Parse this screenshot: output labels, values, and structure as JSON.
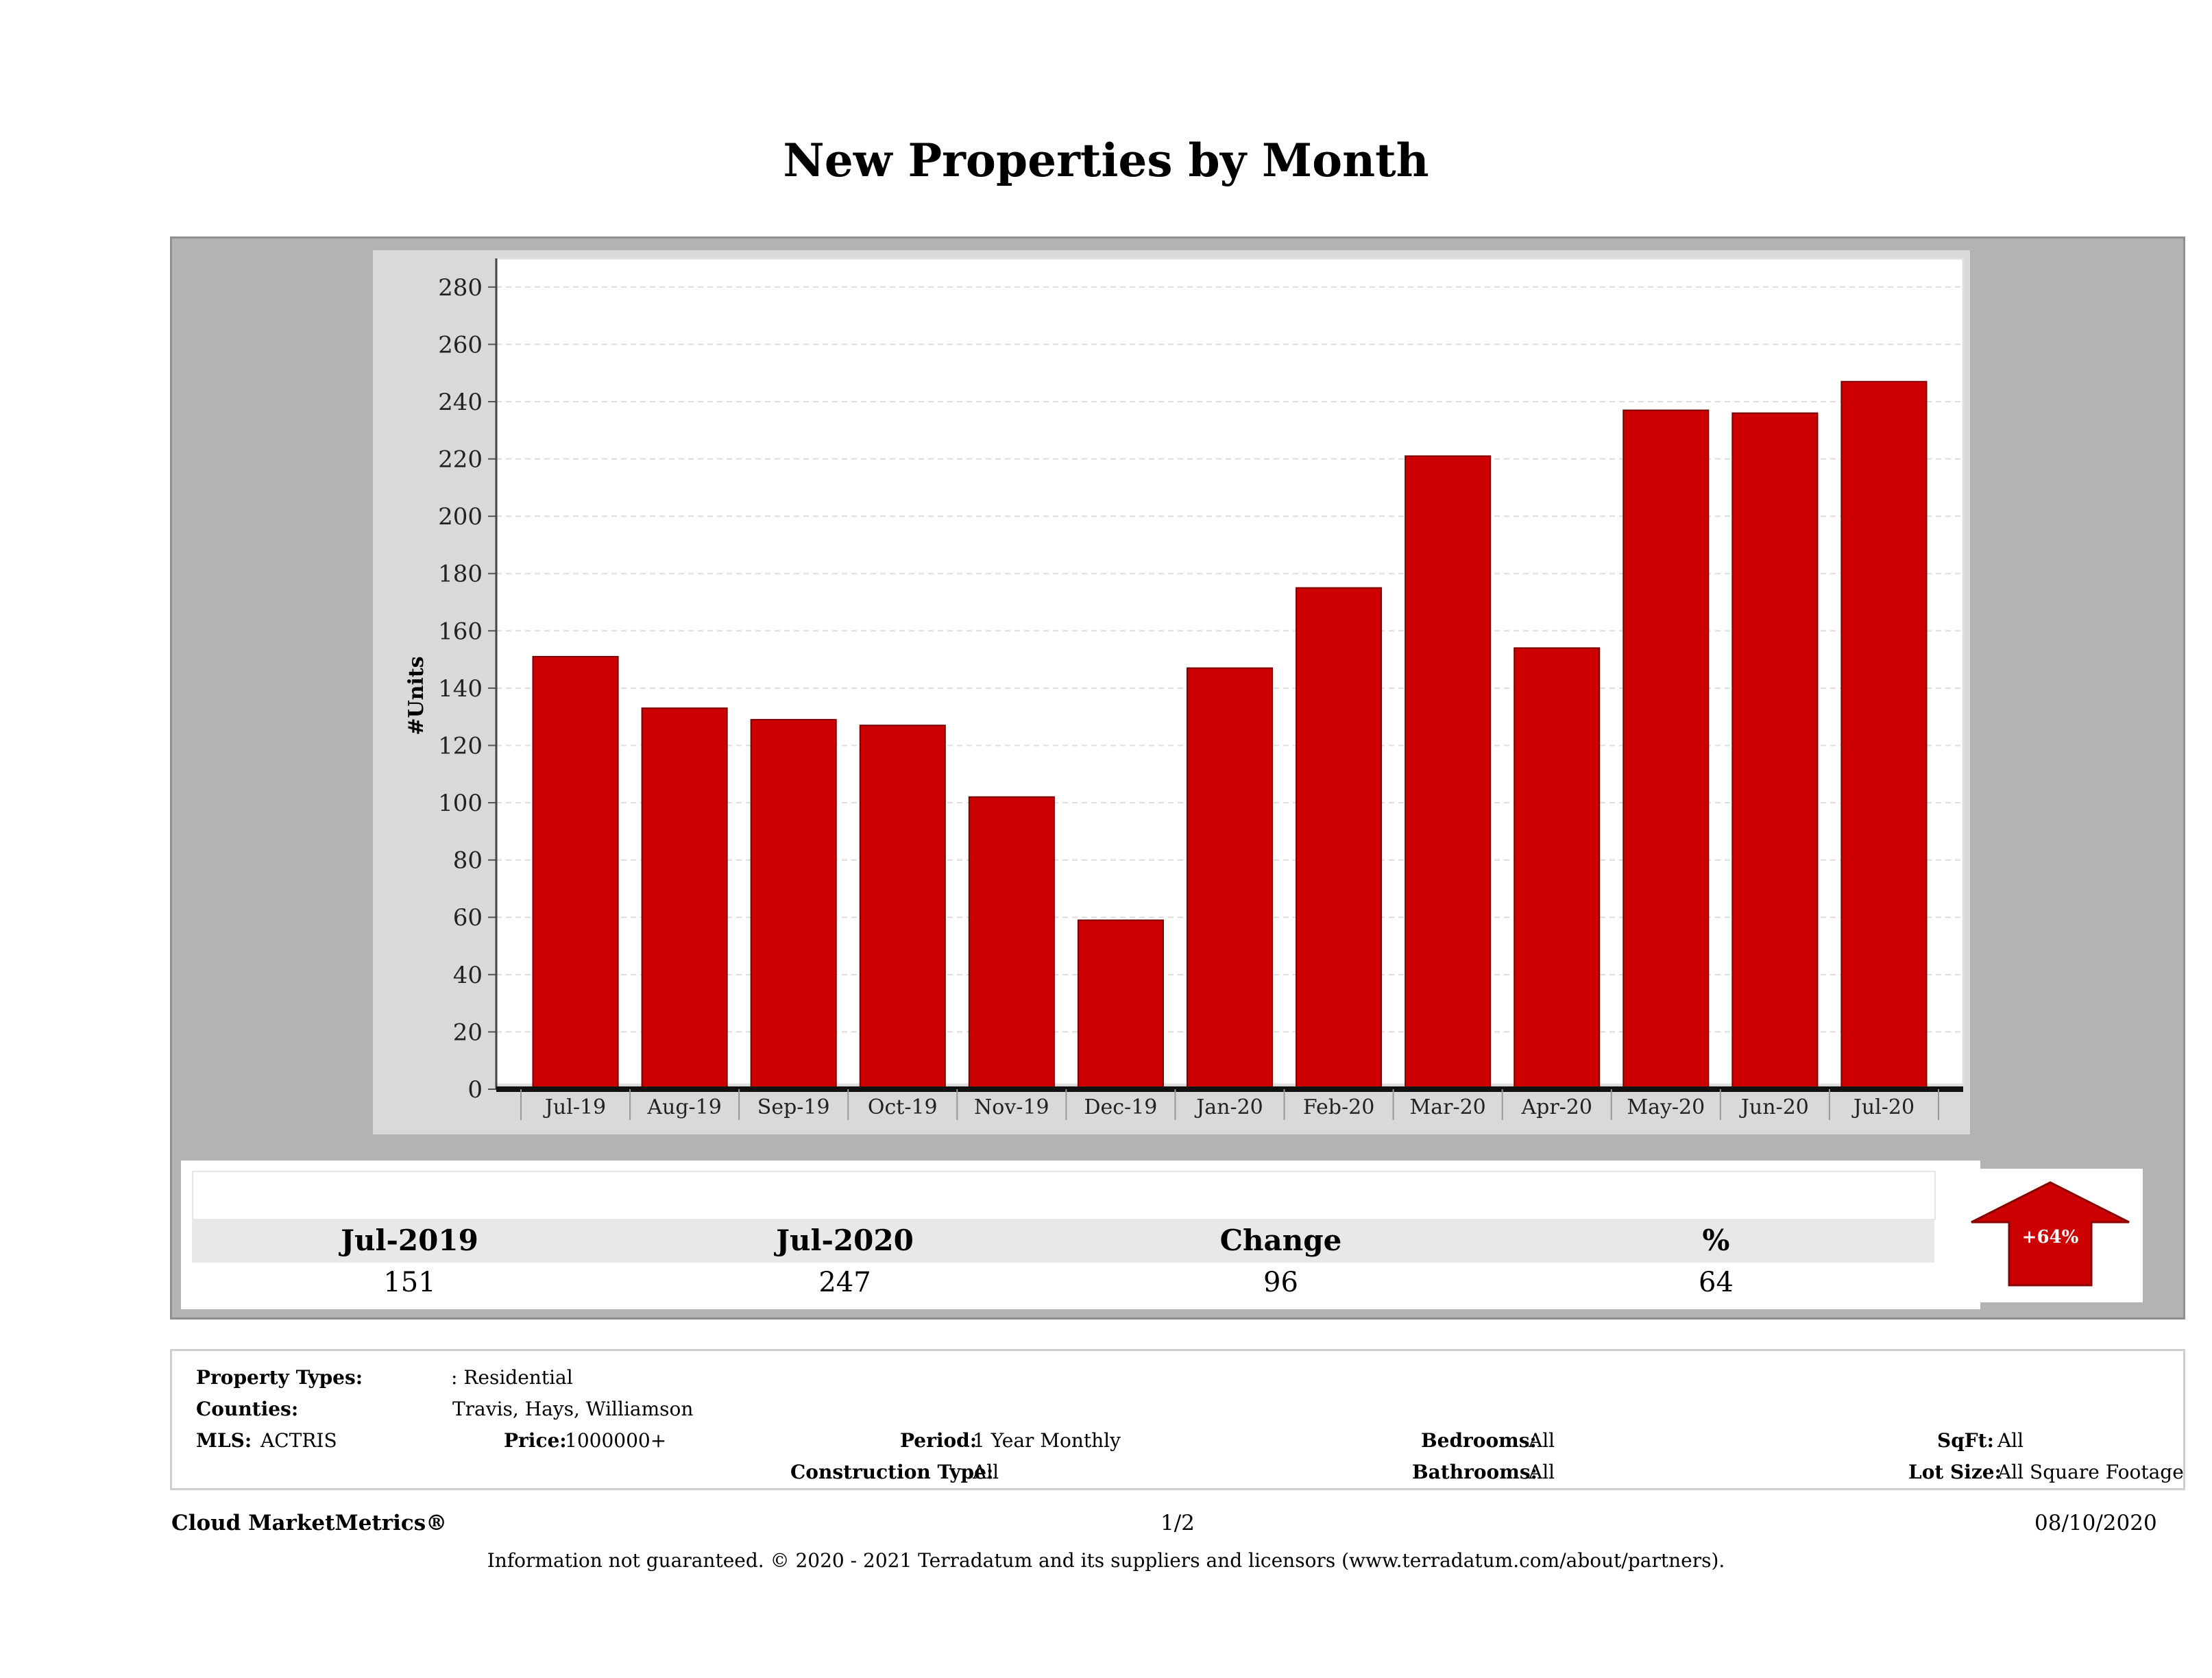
{
  "title": "New Properties by Month",
  "chart_data": {
    "type": "bar",
    "title": "New Properties by Month",
    "ylabel": "#Units",
    "xlabel": "",
    "ylim": [
      0,
      290
    ],
    "yticks": [
      0,
      20,
      40,
      60,
      80,
      100,
      120,
      140,
      160,
      180,
      200,
      220,
      240,
      260,
      280
    ],
    "categories": [
      "Jul-19",
      "Aug-19",
      "Sep-19",
      "Oct-19",
      "Nov-19",
      "Dec-19",
      "Jan-20",
      "Feb-20",
      "Mar-20",
      "Apr-20",
      "May-20",
      "Jun-20",
      "Jul-20"
    ],
    "values": [
      151,
      133,
      129,
      127,
      102,
      59,
      147,
      175,
      221,
      154,
      237,
      236,
      247
    ],
    "bar_color": "#cc0000",
    "grid": true
  },
  "stats": {
    "headers": [
      "Jul-2019",
      "Jul-2020",
      "Change",
      "%"
    ],
    "values": [
      "151",
      "247",
      "96",
      "64"
    ],
    "badge": "+64%",
    "badge_color": "#cc0000"
  },
  "filters": {
    "property_types_label": "Property Types:",
    "property_types_value": ": Residential",
    "counties_label": "Counties:",
    "counties_value": "Travis, Hays, Williamson",
    "mls_label": "MLS:",
    "mls_value": "ACTRIS",
    "price_label": "Price:",
    "price_value": "1000000+",
    "period_label": "Period:",
    "period_value": "1 Year Monthly",
    "construction_label": "Construction Type:",
    "construction_value": "All",
    "bedrooms_label": "Bedrooms:",
    "bedrooms_value": "All",
    "bathrooms_label": "Bathrooms:",
    "bathrooms_value": "All",
    "sqft_label": "SqFt:",
    "sqft_value": "All",
    "lotsize_label": "Lot Size:",
    "lotsize_value": "All Square Footage"
  },
  "footer": {
    "brand": "Cloud MarketMetrics®",
    "page": "1/2",
    "date": "08/10/2020",
    "disclaimer": "Information not guaranteed. © 2020 - 2021 Terradatum and its suppliers and licensors (www.terradatum.com/about/partners)."
  }
}
